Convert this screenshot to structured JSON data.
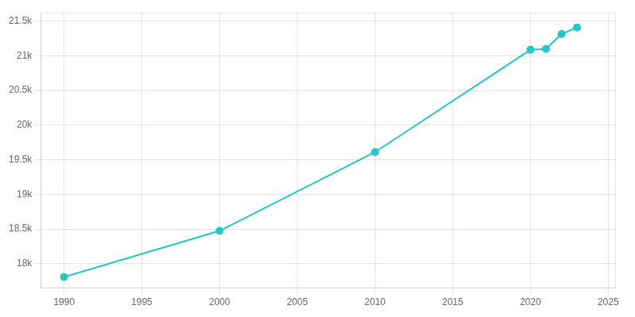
{
  "chart_data": {
    "type": "line",
    "x": [
      1990,
      2000,
      2010,
      2020,
      2021,
      2022,
      2023
    ],
    "values": [
      17811,
      18476,
      19610,
      21085,
      21097,
      21312,
      21407
    ],
    "color": "#26C6C6",
    "marker": "circle",
    "xlim": [
      1988.5,
      2025.5
    ],
    "xticks": [
      1990,
      1995,
      2000,
      2005,
      2010,
      2015,
      2020,
      2025
    ],
    "ylim": [
      17650,
      21620
    ],
    "yticks": [
      {
        "value": 18000,
        "label": "18k"
      },
      {
        "value": 18500,
        "label": "18.5k"
      },
      {
        "value": 19000,
        "label": "19k"
      },
      {
        "value": 19500,
        "label": "19.5k"
      },
      {
        "value": 20000,
        "label": "20k"
      },
      {
        "value": 20500,
        "label": "20.5k"
      },
      {
        "value": 21000,
        "label": "21k"
      },
      {
        "value": 21500,
        "label": "21.5k"
      }
    ],
    "grid": true
  }
}
